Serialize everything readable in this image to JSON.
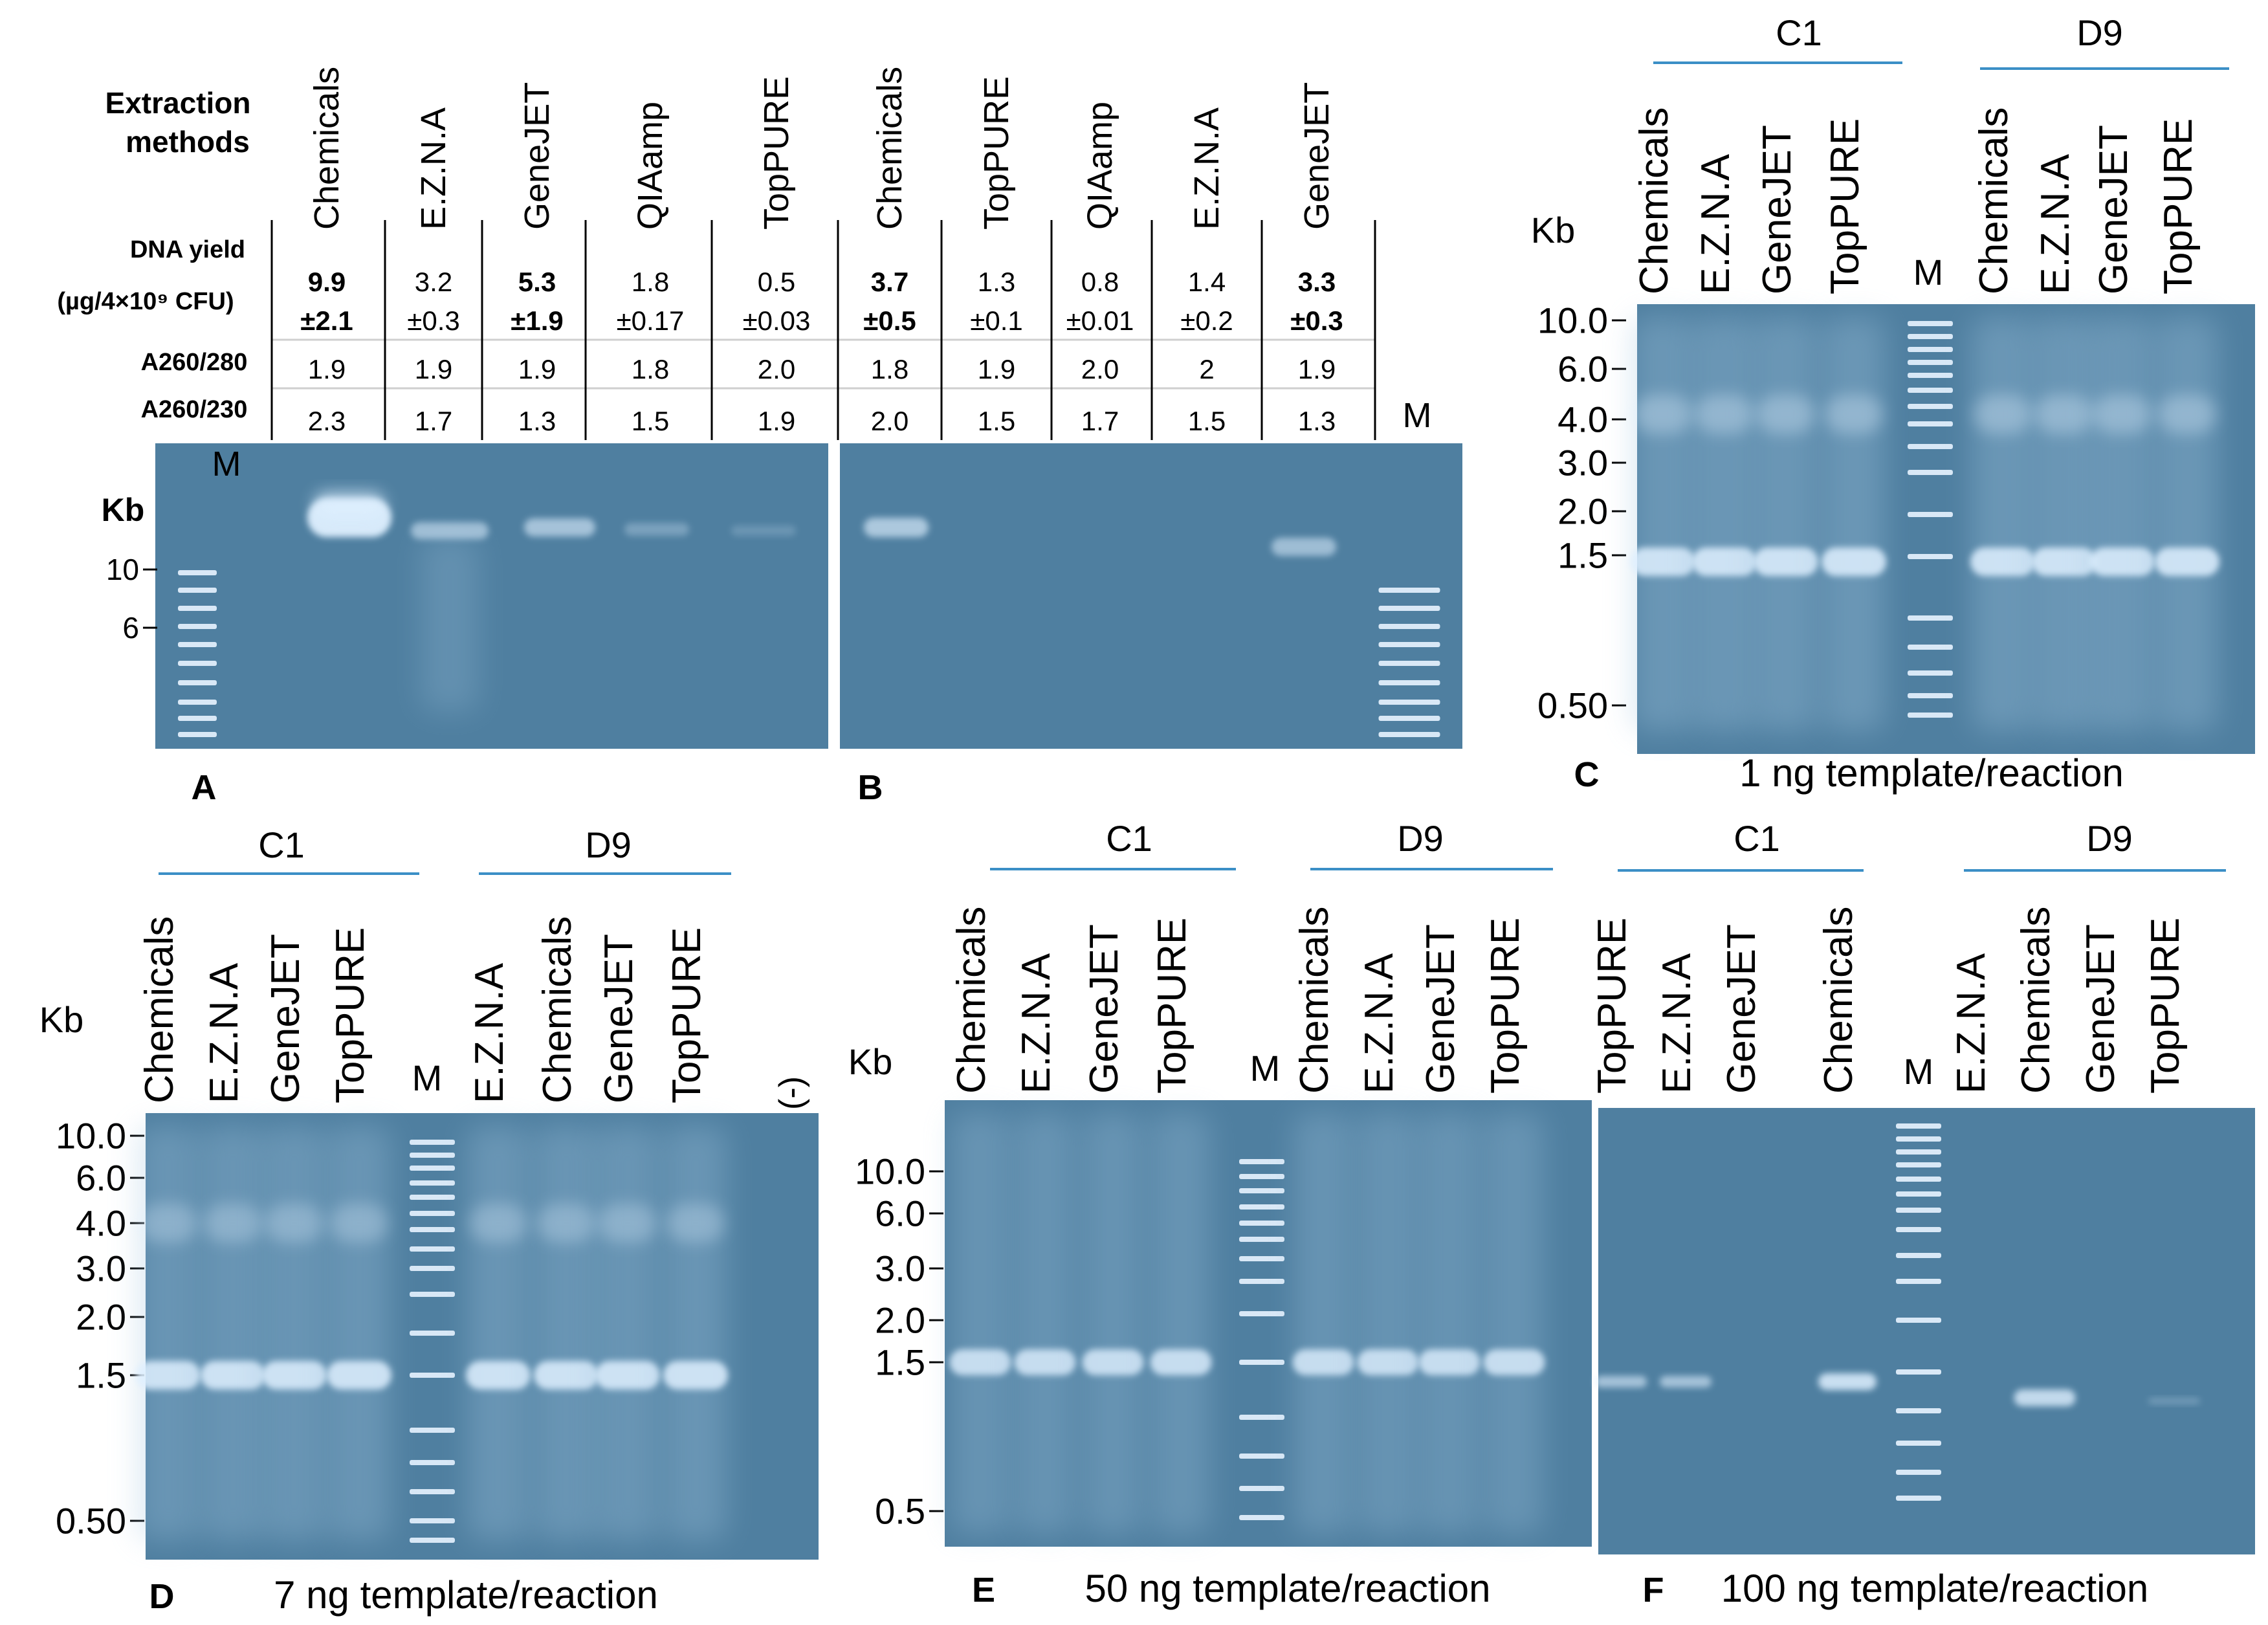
{
  "panel_a": {
    "letter": "A",
    "extraction_methods_label_1": "Extraction",
    "extraction_methods_label_2": "methods",
    "dna_yield_label_1": "DNA yield",
    "dna_yield_label_2": "(µg/4×10⁹ CFU)",
    "a260_280_label": "A260/280",
    "a260_230_label": "A260/230",
    "marker_label": "M",
    "kb_label": "Kb",
    "ticks": [
      "10",
      "6"
    ],
    "lanes": [
      {
        "method": "Chemicals",
        "yield": "9.9",
        "sd": "±2.1",
        "bold": true,
        "a280": "1.9",
        "a230": "2.3"
      },
      {
        "method": "E.Z.N.A",
        "yield": "3.2",
        "sd": "±0.3",
        "bold": false,
        "a280": "1.9",
        "a230": "1.7"
      },
      {
        "method": "GeneJET",
        "yield": "5.3",
        "sd": "±1.9",
        "bold": true,
        "a280": "1.9",
        "a230": "1.3"
      },
      {
        "method": "QIAamp",
        "yield": "1.8",
        "sd": "±0.17",
        "bold": false,
        "a280": "1.8",
        "a230": "1.5"
      },
      {
        "method": "TopPURE",
        "yield": "0.5",
        "sd": "±0.03",
        "bold": false,
        "a280": "2.0",
        "a230": "1.9"
      }
    ]
  },
  "panel_b": {
    "letter": "B",
    "marker_label": "M",
    "lanes": [
      {
        "method": "Chemicals",
        "yield": "3.7",
        "sd": "±0.5",
        "bold": true,
        "a280": "1.8",
        "a230": "2.0"
      },
      {
        "method": "TopPURE",
        "yield": "1.3",
        "sd": "±0.1",
        "bold": false,
        "a280": "1.9",
        "a230": "1.5"
      },
      {
        "method": "QIAamp",
        "yield": "0.8",
        "sd": "±0.01",
        "bold": false,
        "a280": "2.0",
        "a230": "1.7"
      },
      {
        "method": "E.Z.N.A",
        "yield": "1.4",
        "sd": "±0.2",
        "bold": false,
        "a280": "2",
        "a230": "1.5"
      },
      {
        "method": "GeneJET",
        "yield": "3.3",
        "sd": "±0.3",
        "bold": true,
        "a280": "1.9",
        "a230": "1.3"
      }
    ]
  },
  "panel_c": {
    "letter": "C",
    "caption": "1 ng template/reaction",
    "kb_label": "Kb",
    "group_1": "C1",
    "group_2": "D9",
    "marker_label": "M",
    "lanes_left": [
      "Chemicals",
      "E.Z.N.A",
      "GeneJET",
      "TopPURE"
    ],
    "lanes_right": [
      "Chemicals",
      "E.Z.N.A",
      "GeneJET",
      "TopPURE"
    ],
    "ticks": [
      "10.0",
      "6.0",
      "4.0",
      "3.0",
      "2.0",
      "1.5",
      "0.50"
    ]
  },
  "panel_d": {
    "letter": "D",
    "caption": "7 ng template/reaction",
    "kb_label": "Kb",
    "group_1": "C1",
    "group_2": "D9",
    "marker_label": "M",
    "negative_label": "(-)",
    "lanes_left": [
      "Chemicals",
      "E.Z.N.A",
      "GeneJET",
      "TopPURE"
    ],
    "lanes_right": [
      "E.Z.N.A",
      "Chemicals",
      "GeneJET",
      "TopPURE"
    ],
    "ticks": [
      "10.0",
      "6.0",
      "4.0",
      "3.0",
      "2.0",
      "1.5",
      "0.50"
    ]
  },
  "panel_e": {
    "letter": "E",
    "caption": "50 ng template/reaction",
    "kb_label": "Kb",
    "group_1": "C1",
    "group_2": "D9",
    "marker_label": "M",
    "lanes_left": [
      "Chemicals",
      "E.Z.N.A",
      "GeneJET",
      "TopPURE"
    ],
    "lanes_right": [
      "Chemicals",
      "E.Z.N.A",
      "GeneJET",
      "TopPURE"
    ],
    "ticks": [
      "10.0",
      "6.0",
      "3.0",
      "2.0",
      "1.5",
      "0.5"
    ]
  },
  "panel_f": {
    "letter": "F",
    "caption": "100 ng template/reaction",
    "group_1": "C1",
    "group_2": "D9",
    "marker_label": "M",
    "lanes_left": [
      "TopPURE",
      "E.Z.N.A",
      "GeneJET",
      "Chemicals"
    ],
    "lanes_right": [
      "E.Z.N.A",
      "Chemicals",
      "GeneJET",
      "TopPURE"
    ]
  },
  "colors": {
    "gel": "#4f7fa0",
    "gel_dark": "#3f6a8a",
    "band": "#dff0ff",
    "group_line": "#3b8fc6"
  }
}
